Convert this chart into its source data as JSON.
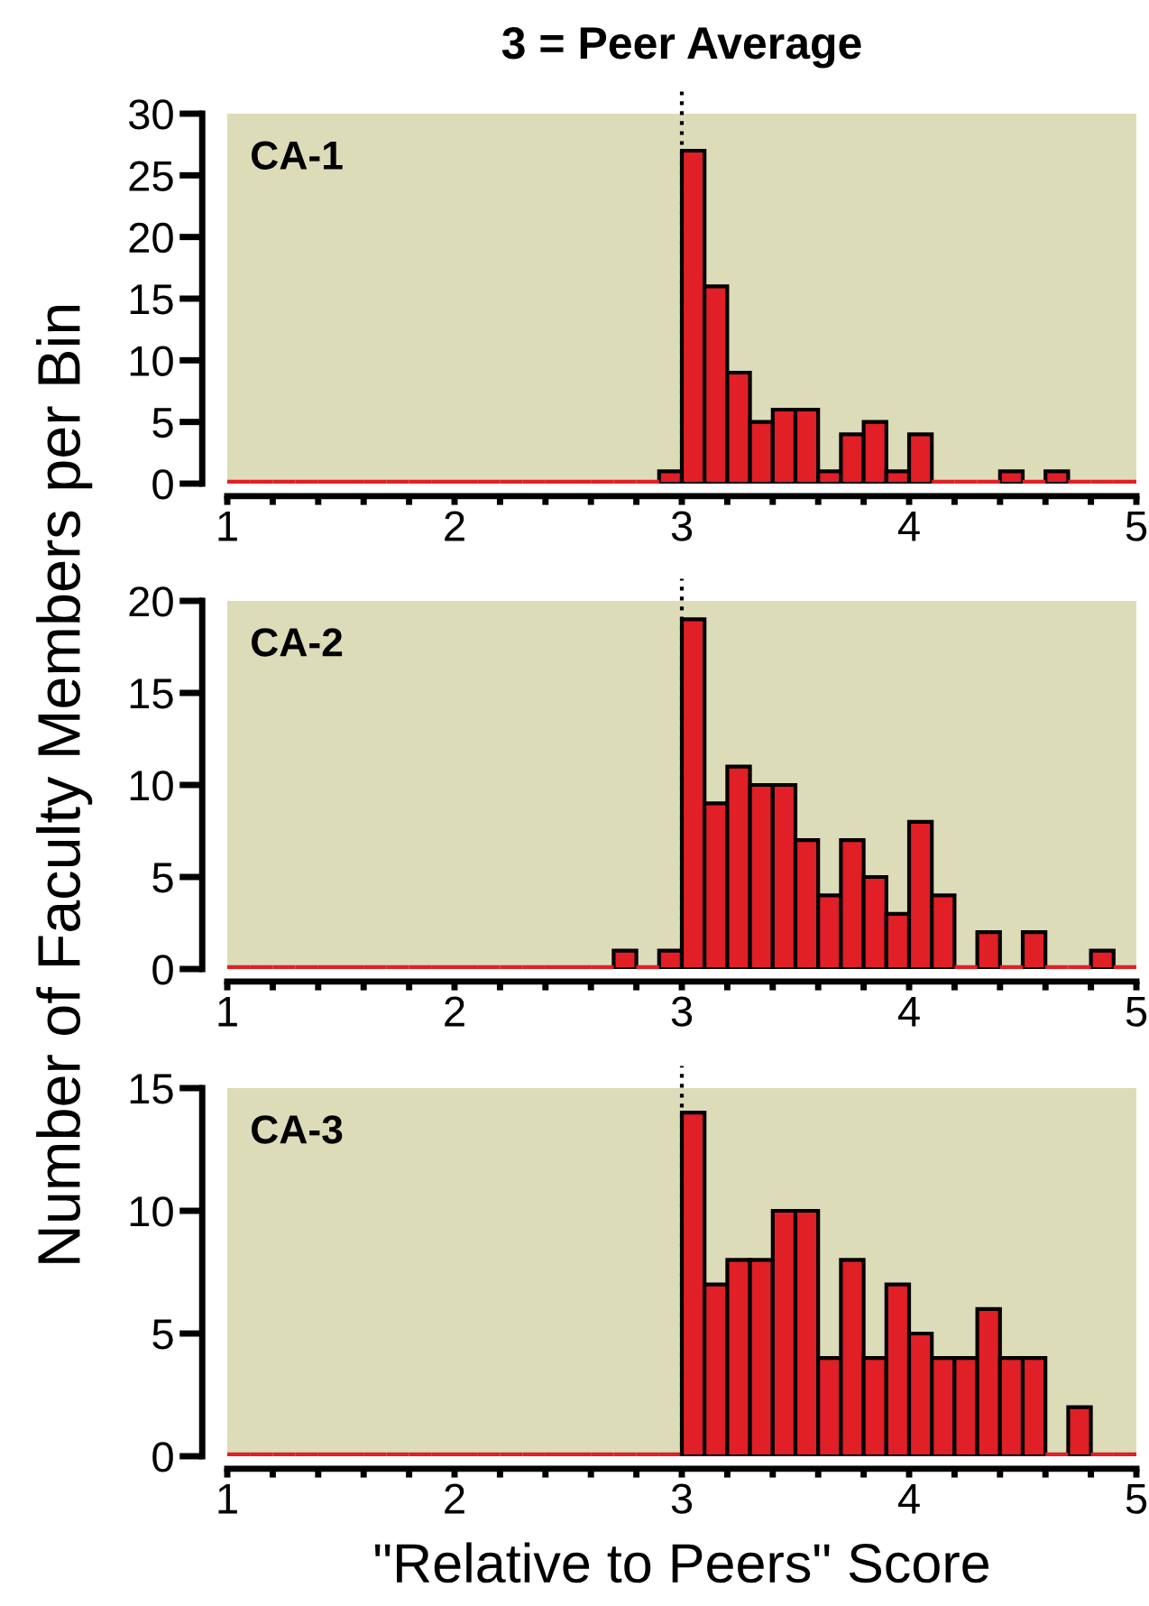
{
  "chart_data": [
    {
      "type": "histogram",
      "title": "3 = Peer Average",
      "annotations": [
        "CA-1"
      ],
      "bins": [
        1.0,
        1.1,
        1.2,
        1.3,
        1.4,
        1.5,
        1.6,
        1.7,
        1.8,
        1.9,
        2.0,
        2.1,
        2.2,
        2.3,
        2.4,
        2.5,
        2.6,
        2.7,
        2.8,
        2.9,
        3.0,
        3.1,
        3.2,
        3.3,
        3.4,
        3.5,
        3.6,
        3.7,
        3.8,
        3.9,
        4.0,
        4.1,
        4.2,
        4.3,
        4.4,
        4.5,
        4.6,
        4.7,
        4.8,
        4.9,
        5.0
      ],
      "values": [
        0,
        0,
        0,
        0,
        0,
        0,
        0,
        0,
        0,
        0,
        0,
        0,
        0,
        0,
        0,
        0,
        0,
        0,
        0,
        1,
        27,
        16,
        9,
        5,
        6,
        6,
        1,
        4,
        5,
        1,
        4,
        0,
        0,
        0,
        1,
        0,
        1,
        0,
        0,
        0
      ],
      "color": "#e01f26",
      "xlim": [
        1,
        5
      ],
      "ylim": [
        0,
        30
      ],
      "xticks": [
        1,
        {
          "value": 1.2,
          "label": null
        },
        {
          "value": 1.4,
          "label": null
        },
        {
          "value": 1.6,
          "label": null
        },
        {
          "value": 1.8,
          "label": null
        },
        2,
        {
          "value": 2.2,
          "label": null
        },
        {
          "value": 2.4,
          "label": null
        },
        {
          "value": 2.6,
          "label": null
        },
        {
          "value": 2.8,
          "label": null
        },
        3,
        {
          "value": 3.2,
          "label": null
        },
        {
          "value": 3.4,
          "label": null
        },
        {
          "value": 3.6,
          "label": null
        },
        {
          "value": 3.8,
          "label": null
        },
        4,
        {
          "value": 4.2,
          "label": null
        },
        {
          "value": 4.4,
          "label": null
        },
        {
          "value": 4.6,
          "label": null
        },
        {
          "value": 4.8,
          "label": null
        },
        5
      ],
      "yticks": [
        0,
        5,
        10,
        15,
        20,
        25,
        30
      ],
      "grid": false,
      "legend": false,
      "ref_lines": [
        {
          "axis": "x",
          "value": 3,
          "line_style": "dotted",
          "color": "#000000"
        }
      ]
    },
    {
      "type": "histogram",
      "ylabel": "Number of Faculty Members per Bin",
      "annotations": [
        "CA-2"
      ],
      "bins": [
        1.0,
        1.1,
        1.2,
        1.3,
        1.4,
        1.5,
        1.6,
        1.7,
        1.8,
        1.9,
        2.0,
        2.1,
        2.2,
        2.3,
        2.4,
        2.5,
        2.6,
        2.7,
        2.8,
        2.9,
        3.0,
        3.1,
        3.2,
        3.3,
        3.4,
        3.5,
        3.6,
        3.7,
        3.8,
        3.9,
        4.0,
        4.1,
        4.2,
        4.3,
        4.4,
        4.5,
        4.6,
        4.7,
        4.8,
        4.9,
        5.0
      ],
      "values": [
        0,
        0,
        0,
        0,
        0,
        0,
        0,
        0,
        0,
        0,
        0,
        0,
        0,
        0,
        0,
        0,
        0,
        1,
        0,
        1,
        19,
        9,
        11,
        10,
        10,
        7,
        4,
        7,
        5,
        3,
        8,
        4,
        0,
        2,
        0,
        2,
        0,
        0,
        1,
        0
      ],
      "color": "#e01f26",
      "xlim": [
        1,
        5
      ],
      "ylim": [
        0,
        20
      ],
      "xticks": [
        1,
        {
          "value": 1.2,
          "label": null
        },
        {
          "value": 1.4,
          "label": null
        },
        {
          "value": 1.6,
          "label": null
        },
        {
          "value": 1.8,
          "label": null
        },
        2,
        {
          "value": 2.2,
          "label": null
        },
        {
          "value": 2.4,
          "label": null
        },
        {
          "value": 2.6,
          "label": null
        },
        {
          "value": 2.8,
          "label": null
        },
        3,
        {
          "value": 3.2,
          "label": null
        },
        {
          "value": 3.4,
          "label": null
        },
        {
          "value": 3.6,
          "label": null
        },
        {
          "value": 3.8,
          "label": null
        },
        4,
        {
          "value": 4.2,
          "label": null
        },
        {
          "value": 4.4,
          "label": null
        },
        {
          "value": 4.6,
          "label": null
        },
        {
          "value": 4.8,
          "label": null
        },
        5
      ],
      "yticks": [
        0,
        5,
        10,
        15,
        20
      ],
      "grid": false,
      "legend": false,
      "ref_lines": [
        {
          "axis": "x",
          "value": 3,
          "line_style": "dotted",
          "color": "#000000"
        }
      ]
    },
    {
      "type": "histogram",
      "xlabel": "\"Relative to Peers\" Score",
      "annotations": [
        "CA-3"
      ],
      "bins": [
        1.0,
        1.1,
        1.2,
        1.3,
        1.4,
        1.5,
        1.6,
        1.7,
        1.8,
        1.9,
        2.0,
        2.1,
        2.2,
        2.3,
        2.4,
        2.5,
        2.6,
        2.7,
        2.8,
        2.9,
        3.0,
        3.1,
        3.2,
        3.3,
        3.4,
        3.5,
        3.6,
        3.7,
        3.8,
        3.9,
        4.0,
        4.1,
        4.2,
        4.3,
        4.4,
        4.5,
        4.6,
        4.7,
        4.8,
        4.9,
        5.0
      ],
      "values": [
        0,
        0,
        0,
        0,
        0,
        0,
        0,
        0,
        0,
        0,
        0,
        0,
        0,
        0,
        0,
        0,
        0,
        0,
        0,
        0,
        14,
        7,
        8,
        8,
        10,
        10,
        4,
        8,
        4,
        7,
        5,
        4,
        4,
        6,
        4,
        4,
        0,
        2,
        0,
        0
      ],
      "color": "#e01f26",
      "xlim": [
        1,
        5
      ],
      "ylim": [
        0,
        15
      ],
      "xticks": [
        1,
        {
          "value": 1.2,
          "label": null
        },
        {
          "value": 1.4,
          "label": null
        },
        {
          "value": 1.6,
          "label": null
        },
        {
          "value": 1.8,
          "label": null
        },
        2,
        {
          "value": 2.2,
          "label": null
        },
        {
          "value": 2.4,
          "label": null
        },
        {
          "value": 2.6,
          "label": null
        },
        {
          "value": 2.8,
          "label": null
        },
        3,
        {
          "value": 3.2,
          "label": null
        },
        {
          "value": 3.4,
          "label": null
        },
        {
          "value": 3.6,
          "label": null
        },
        {
          "value": 3.8,
          "label": null
        },
        4,
        {
          "value": 4.2,
          "label": null
        },
        {
          "value": 4.4,
          "label": null
        },
        {
          "value": 4.6,
          "label": null
        },
        {
          "value": 4.8,
          "label": null
        },
        5
      ],
      "yticks": [
        0,
        5,
        10,
        15
      ],
      "grid": false,
      "legend": false,
      "ref_lines": [
        {
          "axis": "x",
          "value": 3,
          "line_style": "dotted",
          "color": "#000000"
        }
      ]
    }
  ]
}
